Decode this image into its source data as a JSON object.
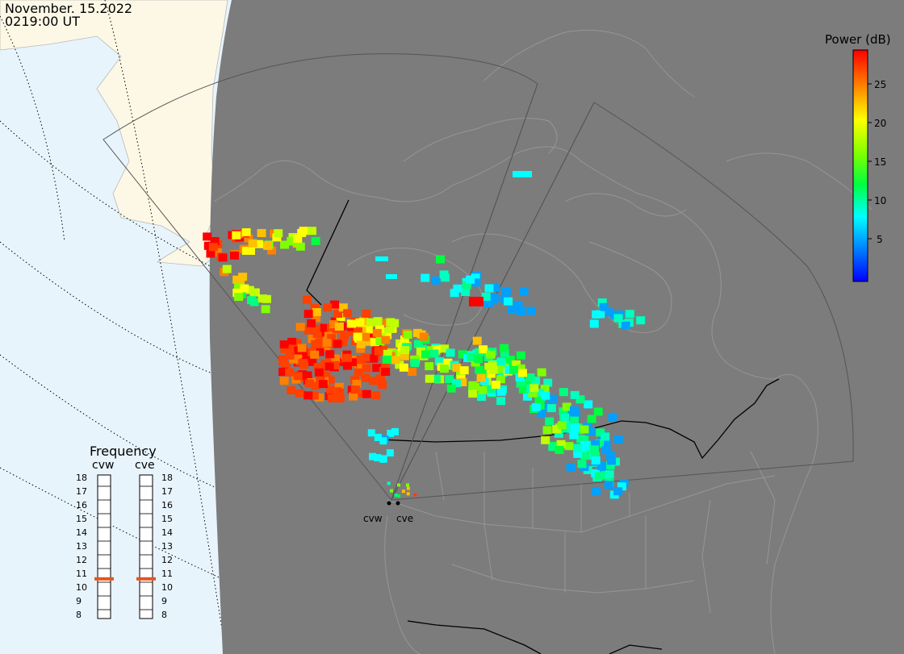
{
  "header": {
    "date": "November. 15.2022",
    "time": "0219:00 UT"
  },
  "colorbar": {
    "title": "Power (dB)",
    "ticks": [
      "25",
      "20",
      "15",
      "10",
      "5"
    ],
    "stops": [
      "#ff0000",
      "#ff7f00",
      "#ffff00",
      "#7fff00",
      "#00ff40",
      "#00ffff",
      "#0080ff",
      "#0000ff"
    ]
  },
  "frequency": {
    "title": "Frequency",
    "radars": [
      "cvw",
      "cve"
    ],
    "scale": [
      "18",
      "17",
      "16",
      "15",
      "14",
      "13",
      "12",
      "11",
      "10",
      "9",
      "8"
    ],
    "current_mhz": [
      10.6,
      10.6
    ]
  },
  "radars": {
    "site_labels": [
      "cvw",
      "cve"
    ]
  },
  "colors": {
    "ocean": "#e8f4fc",
    "land_day": "#fdf8e6",
    "night": "#7c7c7c",
    "marker": "#e8541e"
  }
}
